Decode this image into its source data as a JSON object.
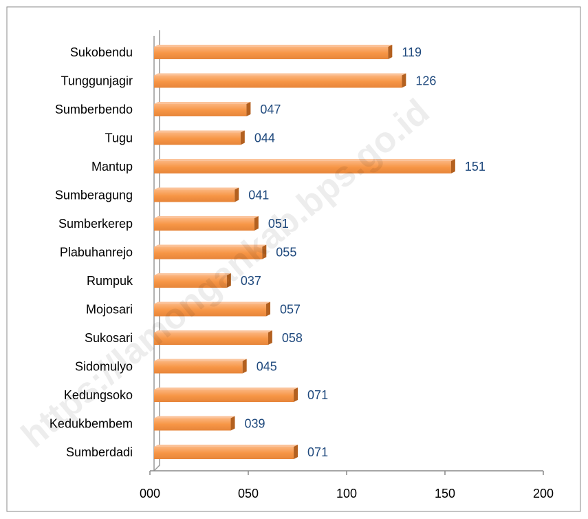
{
  "chart_data": {
    "type": "bar",
    "orientation": "horizontal",
    "categories": [
      "Sukobendu",
      "Tunggunjagir",
      "Sumberbendo",
      "Tugu",
      "Mantup",
      "Sumberagung",
      "Sumberkerep",
      "Plabuhanrejo",
      "Rumpuk",
      "Mojosari",
      "Sukosari",
      "Sidomulyo",
      "Kedungsoko",
      "Kedukbembem",
      "Sumberdadi"
    ],
    "values": [
      119,
      126,
      47,
      44,
      151,
      41,
      51,
      55,
      37,
      57,
      58,
      45,
      71,
      39,
      71
    ],
    "value_labels": [
      "119",
      "126",
      "047",
      "044",
      "151",
      "041",
      "051",
      "055",
      "037",
      "057",
      "058",
      "045",
      "071",
      "039",
      "071"
    ],
    "color": "#f79646",
    "xlim": [
      0,
      200
    ],
    "xticks": [
      {
        "value": 0,
        "label": "000"
      },
      {
        "value": 50,
        "label": "050"
      },
      100,
      150,
      200
    ],
    "watermark": "https://lamongankab.bps.go.id"
  }
}
